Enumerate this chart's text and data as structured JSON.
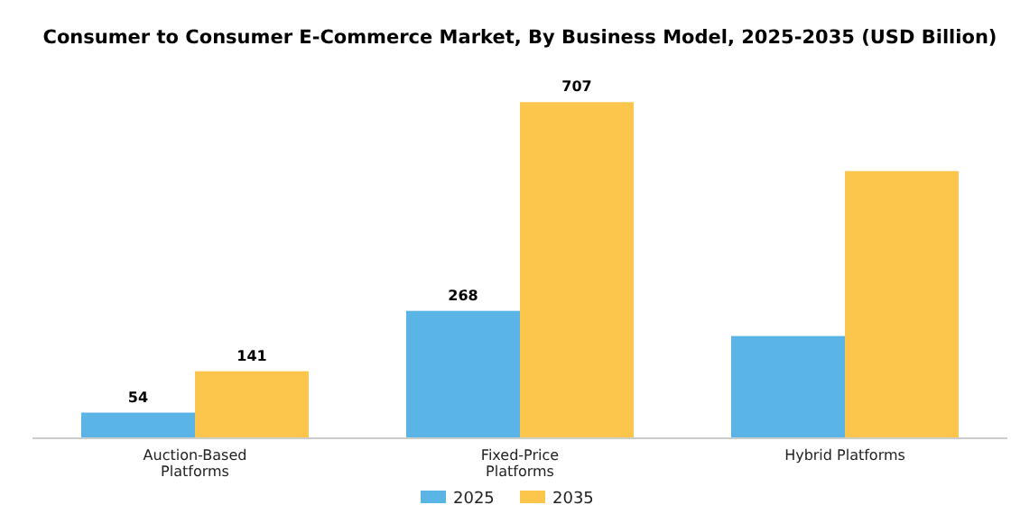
{
  "chart_data": {
    "type": "bar",
    "title": "Consumer to Consumer E-Commerce Market, By Business Model, 2025-2035 (USD Billion)",
    "categories": [
      "Auction-Based Platforms",
      "Fixed-Price Platforms",
      "Hybrid Platforms"
    ],
    "tick_labels": "x",
    "legend": "bottom",
    "grid": false,
    "series": [
      {
        "name": "2025",
        "color": "#5ab4e5",
        "values": [
          54,
          268,
          215
        ],
        "value_labels": [
          "54",
          "268",
          null
        ]
      },
      {
        "name": "2035",
        "color": "#fbc64b",
        "values": [
          141,
          707,
          562
        ],
        "value_labels": [
          "141",
          "707",
          null
        ]
      }
    ]
  }
}
